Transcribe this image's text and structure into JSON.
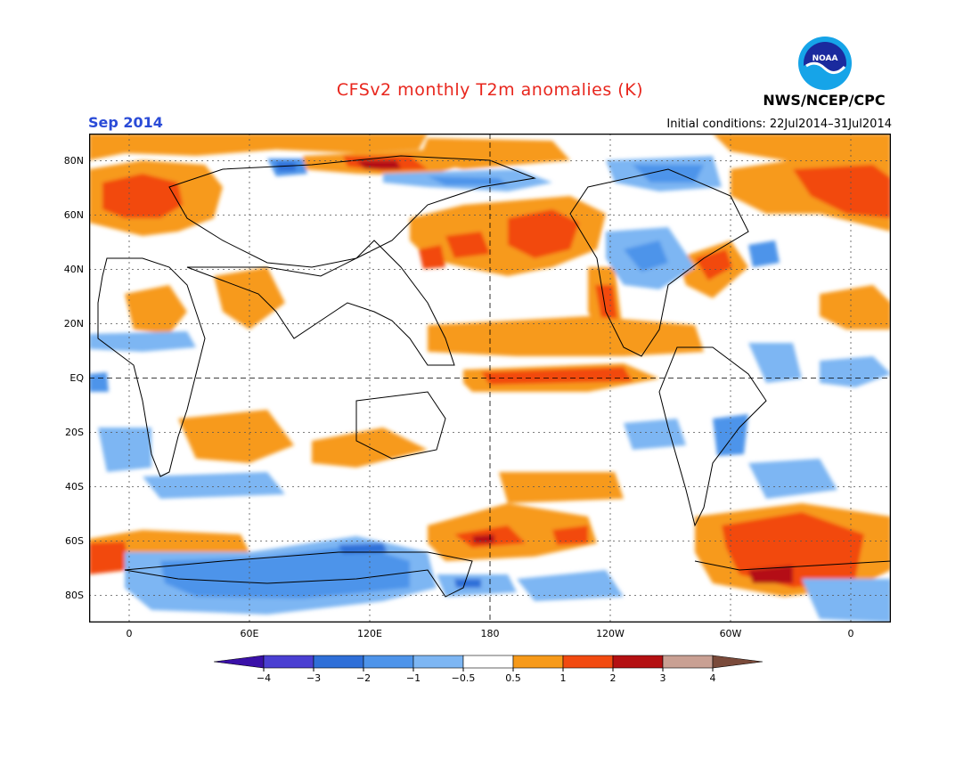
{
  "header": {
    "title": "CFSv2 monthly T2m anomalies (K)",
    "month": "Sep 2014",
    "initial_conditions": "Initial conditions: 22Jul2014–31Jul2014",
    "agency": "NWS/NCEP/CPC",
    "logo_text": "NOAA"
  },
  "map": {
    "lat_labels": [
      "80N",
      "60N",
      "40N",
      "20N",
      "EQ",
      "20S",
      "40S",
      "60S",
      "80S"
    ],
    "lat_values": [
      80,
      60,
      40,
      20,
      0,
      -20,
      -40,
      -60,
      -80
    ],
    "lon_labels": [
      "0",
      "60E",
      "120E",
      "180",
      "120W",
      "60W",
      "0"
    ],
    "lon_values": [
      0,
      60,
      120,
      180,
      240,
      300,
      360
    ],
    "lon_range": [
      -20,
      380
    ],
    "lat_range": [
      -90,
      90
    ]
  },
  "legend": {
    "levels": [
      "−4",
      "−3",
      "−2",
      "−1",
      "−0.5",
      "0.5",
      "1",
      "2",
      "3",
      "4"
    ],
    "colors": [
      "#3a10a8",
      "#4a3fd2",
      "#2f6fd8",
      "#4e94ea",
      "#7db6f3",
      "#ffffff",
      "#f79a1a",
      "#f24a10",
      "#b41012",
      "#c9a093",
      "#7a4a3a"
    ]
  }
}
